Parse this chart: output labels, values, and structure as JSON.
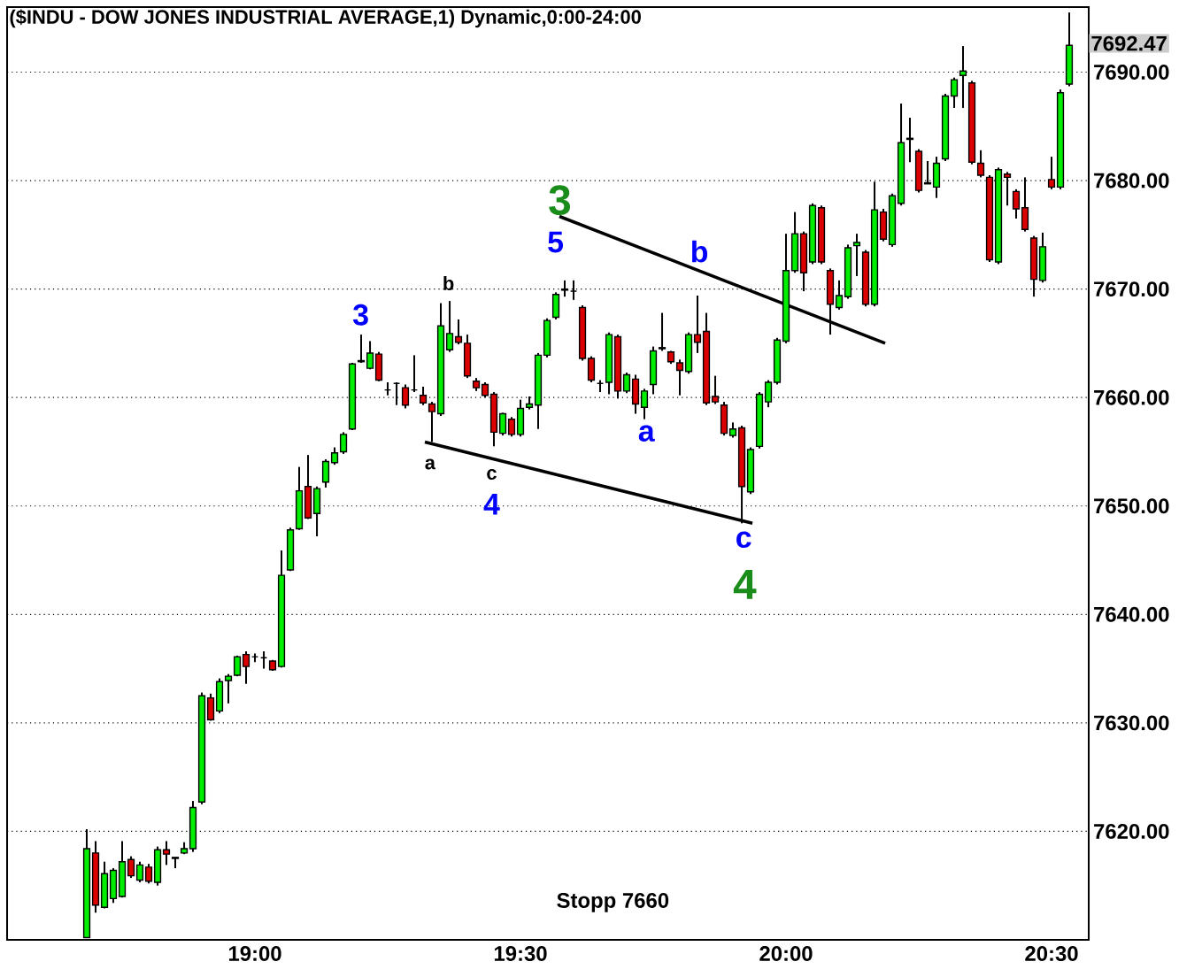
{
  "chart_data": {
    "type": "candlestick",
    "title": "($INDU - DOW JONES INDUSTRIAL AVERAGE,1) Dynamic,0:00-24:00",
    "colors": [
      "#00ee00",
      "#dd0000",
      "#00ee00",
      "#00ee00",
      "#00ee00",
      "#dd0000",
      "#00ee00",
      "#dd0000",
      "#00ee00",
      "#dd0000",
      "#dd0000",
      "#00ee00",
      "#00ee00",
      "#00ee00",
      "#dd0000",
      "#00ee00",
      "#00ee00",
      "#00ee00",
      "#dd0000",
      "#000000",
      "#000000",
      "#dd0000",
      "#00ee00",
      "#00ee00",
      "#00ee00",
      "#dd0000",
      "#00ee00",
      "#00ee00",
      "#00ee00",
      "#00ee00",
      "#00ee00",
      "#dd0000",
      "#00ee00",
      "#dd0000",
      "#000000",
      "#000000",
      "#dd0000",
      "#000000",
      "#dd0000",
      "#dd0000",
      "#00ee00",
      "#00ee00",
      "#dd0000",
      "#dd0000",
      "#dd0000",
      "#dd0000",
      "#dd0000",
      "#00ee00",
      "#dd0000",
      "#00ee00",
      "#00ee00",
      "#00ee00",
      "#00ee00",
      "#00ee00",
      "#00ee00",
      "#000000",
      "#dd0000",
      "#dd0000",
      "#000000",
      "#00ee00",
      "#dd0000",
      "#00ee00",
      "#dd0000",
      "#00ee00",
      "#00ee00",
      "#00ee00",
      "#dd0000",
      "#dd0000",
      "#00ee00",
      "#dd0000",
      "#dd0000",
      "#dd0000",
      "#dd0000",
      "#00ee00",
      "#dd0000",
      "#00ee00",
      "#00ee00",
      "#00ee00",
      "#00ee00",
      "#00ee00",
      "#00ee00",
      "#dd0000",
      "#00ee00",
      "#dd0000",
      "#dd0000",
      "#00ee00",
      "#00ee00",
      "#00ee00",
      "#dd0000",
      "#00ee00",
      "#dd0000",
      "#00ee00",
      "#00ee00",
      "#00ee00",
      "#dd0000",
      "#dd0000",
      "#00ee00",
      "#00ee00",
      "#00ee00",
      "#00ee00",
      "#dd0000",
      "#dd0000",
      "#dd0000",
      "#00ee00",
      "#dd0000",
      "#dd0000",
      "#dd0000",
      "#dd0000",
      "#00ee00",
      "#dd0000",
      "#00ee00",
      "#00ee00"
    ],
    "x": [
      18.6833,
      18.7,
      18.7167,
      18.7333,
      18.75,
      18.7667,
      18.7833,
      18.8,
      18.8167,
      18.8333,
      18.85,
      18.8667,
      18.8833,
      18.9,
      18.9167,
      18.9333,
      18.95,
      18.9667,
      18.9833,
      19.0,
      19.0167,
      19.0333,
      19.05,
      19.0667,
      19.0833,
      19.1,
      19.1167,
      19.1333,
      19.15,
      19.1667,
      19.1833,
      19.2,
      19.2167,
      19.2333,
      19.25,
      19.2667,
      19.2833,
      19.3,
      19.3167,
      19.3333,
      19.35,
      19.3667,
      19.3833,
      19.4,
      19.4167,
      19.4333,
      19.45,
      19.4667,
      19.4833,
      19.5,
      19.5167,
      19.5333,
      19.55,
      19.5667,
      19.5833,
      19.6,
      19.6167,
      19.6333,
      19.65,
      19.6667,
      19.6833,
      19.7,
      19.7167,
      19.7333,
      19.75,
      19.7667,
      19.7833,
      19.8,
      19.8167,
      19.8333,
      19.85,
      19.8667,
      19.8833,
      19.9,
      19.9167,
      19.9333,
      19.95,
      19.9667,
      19.9833,
      20.0,
      20.0167,
      20.0333,
      20.05,
      20.0667,
      20.0833,
      20.1,
      20.1167,
      20.1333,
      20.15,
      20.1667,
      20.1833,
      20.2,
      20.2167,
      20.2333,
      20.25,
      20.2667,
      20.2833,
      20.3,
      20.3167,
      20.3333,
      20.35,
      20.3667,
      20.3833,
      20.4,
      20.4167,
      20.4333,
      20.45,
      20.4667,
      20.4833,
      20.5,
      20.5167,
      20.5333
    ],
    "ohlc": [
      [
        7610.2,
        7620.2,
        7610.2,
        7618.4
      ],
      [
        7618.0,
        7619.1,
        7612.5,
        7613.2
      ],
      [
        7613.0,
        7617.2,
        7612.9,
        7616.1
      ],
      [
        7613.8,
        7616.6,
        7613.4,
        7616.4
      ],
      [
        7614.0,
        7619.1,
        7613.9,
        7617.2
      ],
      [
        7617.4,
        7617.7,
        7615.7,
        7615.9
      ],
      [
        7615.5,
        7617.2,
        7615.3,
        7616.9
      ],
      [
        7616.7,
        7617.0,
        7615.2,
        7615.4
      ],
      [
        7615.3,
        7618.6,
        7615.0,
        7618.3
      ],
      [
        7618.3,
        7619.1,
        7616.9,
        7617.9
      ],
      [
        7617.6,
        7617.6,
        7616.6,
        7617.5
      ],
      [
        7618.0,
        7619.0,
        7617.9,
        7618.4
      ],
      [
        7618.4,
        7622.8,
        7618.1,
        7622.2
      ],
      [
        7622.7,
        7632.8,
        7622.5,
        7632.5
      ],
      [
        7632.3,
        7632.7,
        7630.2,
        7630.3
      ],
      [
        7631.1,
        7634.1,
        7630.9,
        7633.8
      ],
      [
        7633.9,
        7634.5,
        7631.8,
        7634.3
      ],
      [
        7634.4,
        7636.2,
        7634.3,
        7636.1
      ],
      [
        7636.3,
        7636.6,
        7633.6,
        7635.2
      ],
      [
        7636.1,
        7636.4,
        7635.6,
        7636.1
      ],
      [
        7636.0,
        7636.6,
        7635.0,
        7636.0
      ],
      [
        7635.7,
        7635.8,
        7634.8,
        7634.9
      ],
      [
        7635.2,
        7645.9,
        7635.1,
        7643.6
      ],
      [
        7644.1,
        7648.0,
        7644.0,
        7647.8
      ],
      [
        7647.9,
        7653.6,
        7647.8,
        7651.4
      ],
      [
        7651.8,
        7654.7,
        7648.8,
        7648.9
      ],
      [
        7649.3,
        7651.8,
        7647.2,
        7651.6
      ],
      [
        7652.2,
        7654.3,
        7651.7,
        7654.1
      ],
      [
        7654.0,
        7655.4,
        7653.8,
        7654.9
      ],
      [
        7655.0,
        7656.8,
        7654.8,
        7656.6
      ],
      [
        7657.1,
        7663.2,
        7657.0,
        7663.1
      ],
      [
        7663.4,
        7665.8,
        7663.2,
        7663.3
      ],
      [
        7662.7,
        7665.2,
        7662.6,
        7664.1
      ],
      [
        7664.0,
        7664.2,
        7661.5,
        7661.6
      ],
      [
        7660.7,
        7661.4,
        7660.2,
        7660.7
      ],
      [
        7661.3,
        7661.4,
        7659.3,
        7661.3
      ],
      [
        7660.9,
        7661.2,
        7659.0,
        7659.3
      ],
      [
        7660.7,
        7663.9,
        7660.5,
        7660.7
      ],
      [
        7660.2,
        7661.0,
        7659.3,
        7659.5
      ],
      [
        7659.4,
        7659.6,
        7655.9,
        7658.7
      ],
      [
        7658.5,
        7668.7,
        7658.3,
        7666.6
      ],
      [
        7664.4,
        7668.9,
        7664.2,
        7665.9
      ],
      [
        7665.6,
        7667.2,
        7664.9,
        7665.1
      ],
      [
        7665.0,
        7665.8,
        7661.8,
        7662.0
      ],
      [
        7661.5,
        7661.8,
        7660.6,
        7660.9
      ],
      [
        7661.2,
        7661.4,
        7660.0,
        7660.2
      ],
      [
        7660.3,
        7660.5,
        7655.5,
        7656.8
      ],
      [
        7656.7,
        7658.6,
        7656.5,
        7658.5
      ],
      [
        7658.0,
        7658.2,
        7656.4,
        7656.6
      ],
      [
        7656.6,
        7659.8,
        7656.4,
        7659.0
      ],
      [
        7659.1,
        7660.1,
        7658.9,
        7659.4
      ],
      [
        7659.3,
        7664.1,
        7657.1,
        7663.9
      ],
      [
        7663.9,
        7667.3,
        7663.7,
        7667.1
      ],
      [
        7667.4,
        7669.7,
        7667.2,
        7669.5
      ],
      [
        7669.9,
        7670.8,
        7669.3,
        7670.0
      ],
      [
        7669.8,
        7670.8,
        7669.0,
        7669.8
      ],
      [
        7668.3,
        7668.5,
        7663.4,
        7663.6
      ],
      [
        7663.6,
        7663.8,
        7661.4,
        7661.6
      ],
      [
        7661.3,
        7661.6,
        7660.5,
        7661.3
      ],
      [
        7661.4,
        7666.0,
        7660.3,
        7665.8
      ],
      [
        7665.6,
        7665.8,
        7659.9,
        7660.6
      ],
      [
        7660.6,
        7662.3,
        7660.4,
        7662.1
      ],
      [
        7661.7,
        7662.1,
        7658.5,
        7659.4
      ],
      [
        7659.1,
        7660.8,
        7658.0,
        7660.6
      ],
      [
        7661.2,
        7664.7,
        7660.3,
        7664.3
      ],
      [
        7664.5,
        7667.8,
        7664.3,
        7664.6
      ],
      [
        7664.2,
        7664.3,
        7663.1,
        7663.3
      ],
      [
        7663.2,
        7663.5,
        7660.2,
        7662.5
      ],
      [
        7662.4,
        7666.0,
        7662.2,
        7665.8
      ],
      [
        7665.8,
        7669.4,
        7664.1,
        7665.1
      ],
      [
        7666.1,
        7667.8,
        7659.3,
        7659.5
      ],
      [
        7660.1,
        7662.0,
        7659.4,
        7659.6
      ],
      [
        7659.3,
        7659.6,
        7656.5,
        7656.7
      ],
      [
        7656.5,
        7657.7,
        7656.3,
        7657.1
      ],
      [
        7657.2,
        7657.4,
        7648.4,
        7651.8
      ],
      [
        7651.3,
        7655.4,
        7651.1,
        7655.2
      ],
      [
        7655.5,
        7660.5,
        7655.3,
        7660.3
      ],
      [
        7659.6,
        7661.6,
        7659.1,
        7661.4
      ],
      [
        7661.4,
        7665.5,
        7661.2,
        7665.3
      ],
      [
        7665.2,
        7675.1,
        7665.0,
        7671.7
      ],
      [
        7671.7,
        7677.1,
        7671.5,
        7675.1
      ],
      [
        7675.1,
        7675.3,
        7669.8,
        7671.5
      ],
      [
        7672.5,
        7677.9,
        7672.3,
        7677.7
      ],
      [
        7677.5,
        7677.7,
        7672.3,
        7672.5
      ],
      [
        7671.7,
        7671.9,
        7665.8,
        7668.6
      ],
      [
        7668.3,
        7670.8,
        7668.1,
        7669.4
      ],
      [
        7669.3,
        7674.1,
        7669.1,
        7673.8
      ],
      [
        7674.0,
        7675.1,
        7671.2,
        7674.3
      ],
      [
        7673.4,
        7673.6,
        7668.4,
        7668.6
      ],
      [
        7668.6,
        7679.9,
        7668.4,
        7677.3
      ],
      [
        7677.1,
        7677.4,
        7674.4,
        7674.6
      ],
      [
        7674.1,
        7678.8,
        7673.9,
        7678.6
      ],
      [
        7677.9,
        7687.1,
        7677.7,
        7683.5
      ],
      [
        7683.8,
        7685.8,
        7681.7,
        7683.9
      ],
      [
        7682.7,
        7682.9,
        7678.9,
        7679.1
      ],
      [
        7679.8,
        7681.8,
        7679.7,
        7679.7
      ],
      [
        7679.4,
        7682.2,
        7678.4,
        7681.6
      ],
      [
        7682.0,
        7688.0,
        7681.8,
        7687.8
      ],
      [
        7687.8,
        7689.5,
        7686.7,
        7689.3
      ],
      [
        7689.7,
        7692.4,
        7686.7,
        7690.1
      ],
      [
        7689.0,
        7689.2,
        7681.5,
        7681.7
      ],
      [
        7681.6,
        7682.8,
        7680.3,
        7680.5
      ],
      [
        7680.3,
        7680.5,
        7672.5,
        7672.7
      ],
      [
        7672.5,
        7681.2,
        7672.3,
        7681.0
      ],
      [
        7680.6,
        7680.8,
        7677.7,
        7680.3
      ],
      [
        7679.0,
        7679.2,
        7676.5,
        7677.4
      ],
      [
        7677.5,
        7680.3,
        7675.3,
        7675.5
      ],
      [
        7674.7,
        7674.9,
        7669.3,
        7670.9
      ],
      [
        7670.8,
        7675.2,
        7670.6,
        7673.9
      ],
      [
        7680.1,
        7682.2,
        7679.2,
        7679.4
      ],
      [
        7679.4,
        7688.4,
        7679.2,
        7688.1
      ],
      [
        7688.9,
        7695.5,
        7688.7,
        7692.47
      ]
    ],
    "series": [
      {
        "type": "line",
        "color": "#000000",
        "x": [
          19.5733,
          20.1867
        ],
        "values": [
          7676.7,
          7665.0
        ]
      },
      {
        "type": "line",
        "color": "#000000",
        "x": [
          19.32,
          19.9367
        ],
        "values": [
          7655.9,
          7648.4
        ]
      }
    ],
    "annotations": [
      "3",
      "b",
      "a",
      "c",
      "4",
      "5",
      "3",
      "b",
      "a",
      "c",
      "4",
      "Stopp 7660",
      "7692.47"
    ],
    "xlim": [
      18.5333,
      20.57
    ],
    "ylim": [
      7610,
      7696
    ],
    "xticks": [
      {
        "value": 19,
        "label": "19:00"
      },
      {
        "value": 19.5,
        "label": "19:30"
      },
      {
        "value": 20,
        "label": "20:00"
      },
      {
        "value": 20.5,
        "label": "20:30"
      }
    ],
    "yticks": [
      {
        "value": 7620,
        "label": "7620.00"
      },
      {
        "value": 7630,
        "label": "7630.00"
      },
      {
        "value": 7640,
        "label": "7640.00"
      },
      {
        "value": 7650,
        "label": "7650.00"
      },
      {
        "value": 7660,
        "label": "7660.00"
      },
      {
        "value": 7670,
        "label": "7670.00"
      },
      {
        "value": 7680,
        "label": "7680.00"
      },
      {
        "value": 7690,
        "label": "7690.00"
      }
    ],
    "grid": "y"
  }
}
